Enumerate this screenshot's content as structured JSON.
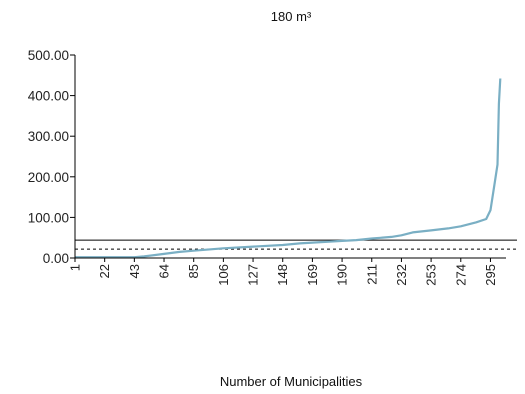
{
  "chart_data": {
    "type": "line",
    "title": "180 m³",
    "xlabel": "Number of Municipalities",
    "ylabel": "",
    "xlim": [
      1,
      306
    ],
    "ylim": [
      0,
      500
    ],
    "yticks": [
      "0.00",
      "100.00",
      "200.00",
      "300.00",
      "400.00",
      "500.00"
    ],
    "xticks": [
      "1",
      "22",
      "43",
      "64",
      "85",
      "106",
      "127",
      "148",
      "169",
      "190",
      "211",
      "232",
      "253",
      "274",
      "295"
    ],
    "grid": false,
    "colors": {
      "series": "#7aafc4",
      "reference": "#000000",
      "axis": "#000000"
    },
    "reference_lines": [
      {
        "y": 44,
        "style": "solid"
      },
      {
        "y": 22,
        "style": "dashed"
      }
    ],
    "series": [
      {
        "x": [
          1,
          22,
          43,
          50,
          64,
          75,
          85,
          106,
          127,
          148,
          160,
          169,
          190,
          200,
          211,
          225,
          232,
          240,
          253,
          265,
          274,
          285,
          292,
          295,
          298,
          300,
          301,
          302
        ],
        "y": [
          2,
          2,
          2,
          4,
          10,
          15,
          18,
          24,
          28,
          32,
          36,
          38,
          42,
          44,
          48,
          52,
          56,
          63,
          68,
          73,
          78,
          88,
          96,
          118,
          185,
          230,
          380,
          442
        ]
      }
    ]
  }
}
